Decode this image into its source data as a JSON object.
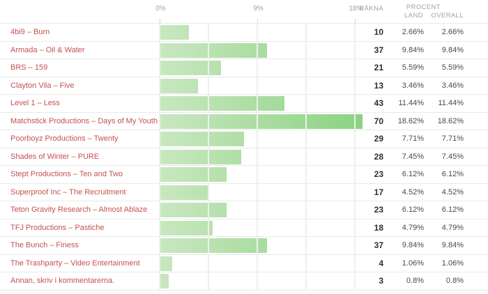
{
  "header": {
    "count_label": "RÄKNA",
    "percent_label": "PROCENT",
    "land_label": "LAND",
    "overall_label": "OVERALL"
  },
  "colors": {
    "bar_gradient_start": "#c9e7c0",
    "bar_gradient_end": "#8bd282",
    "label_red": "#c4504f",
    "header_gray": "#a2a2a2",
    "grid_line": "#efefef",
    "row_border": "#e9e9e9"
  },
  "chart_data": {
    "type": "bar",
    "orientation": "horizontal",
    "title": "",
    "xlabel": "",
    "ylabel": "",
    "axis_range_pct": [
      0,
      18
    ],
    "axis_tick_labels": [
      "0%",
      "9%",
      "18%"
    ],
    "axis_tick_values": [
      0,
      9,
      18
    ],
    "minor_gridline_step_pct": 4.5,
    "grid": true,
    "columns": [
      "RÄKNA",
      "PROCENT LAND",
      "PROCENT OVERALL"
    ],
    "rows": [
      {
        "label": "4bi9 – Burn",
        "count": "10",
        "land": "2.66%",
        "overall": "2.66%"
      },
      {
        "label": "Armada – Oil & Water",
        "count": "37",
        "land": "9.84%",
        "overall": "9.84%"
      },
      {
        "label": "BRS – 159",
        "count": "21",
        "land": "5.59%",
        "overall": "5.59%"
      },
      {
        "label": "Clayton Vila – Five",
        "count": "13",
        "land": "3.46%",
        "overall": "3.46%"
      },
      {
        "label": "Level 1 – Less",
        "count": "43",
        "land": "11.44%",
        "overall": "11.44%"
      },
      {
        "label": "Matchstick Productions – Days of My Youth",
        "count": "70",
        "land": "18.62%",
        "overall": "18.62%"
      },
      {
        "label": "Poorboyz Productions – Twenty",
        "count": "29",
        "land": "7.71%",
        "overall": "7.71%"
      },
      {
        "label": "Shades of Winter – PURE",
        "count": "28",
        "land": "7.45%",
        "overall": "7.45%"
      },
      {
        "label": "Stept Productions – Ten and Two",
        "count": "23",
        "land": "6.12%",
        "overall": "6.12%"
      },
      {
        "label": "Superproof Inc – The Recruitment",
        "count": "17",
        "land": "4.52%",
        "overall": "4.52%"
      },
      {
        "label": "Teton Gravity Research – Almost Ablaze",
        "count": "23",
        "land": "6.12%",
        "overall": "6.12%"
      },
      {
        "label": "TFJ Productions – Pastiche",
        "count": "18",
        "land": "4.79%",
        "overall": "4.79%"
      },
      {
        "label": "The Bunch – Finess",
        "count": "37",
        "land": "9.84%",
        "overall": "9.84%"
      },
      {
        "label": "The Trashparty – Video Entertainment",
        "count": "4",
        "land": "1.06%",
        "overall": "1.06%"
      },
      {
        "label": "Annan, skriv i kommentarerna.",
        "count": "3",
        "land": "0.8%",
        "overall": "0.8%"
      }
    ]
  }
}
